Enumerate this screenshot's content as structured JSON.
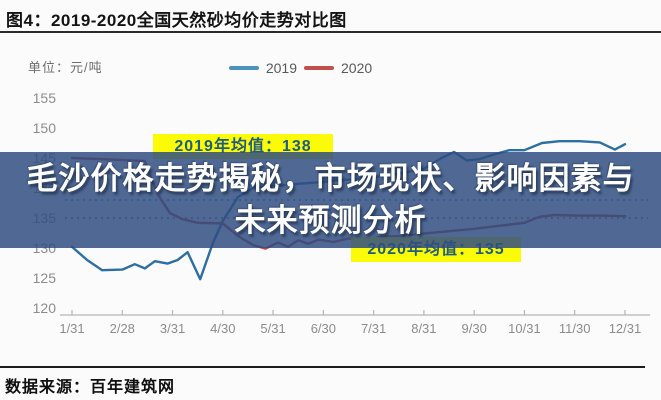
{
  "chart": {
    "title": "图4：2019-2020全国天然砂均价走势对比图",
    "unit_label": "单位：元/吨",
    "legend": {
      "s2019": "2019",
      "s2020": "2020"
    }
  },
  "banner": {
    "line1": "毛沙价格走势揭秘，市场现状、影响因素与",
    "line2": "未来预测分析"
  },
  "footer": {
    "source": "数据来源：百年建筑网"
  },
  "colors": {
    "line_2019": "#2d6fa3",
    "line_2020": "#b5453e",
    "legend_2019": "#4b93bd",
    "legend_2020": "#c0504d",
    "avg_dash_2019": "#4f7fb0",
    "avg_dash_2020": "#a86868",
    "annotation_bg": "#fbfb08",
    "annotation_text": "#1f5c85",
    "banner_bg": "rgba(48,78,129,0.85)",
    "axis": "#b5b5b5",
    "tick_text": "#8c8c8c"
  },
  "chart_data": {
    "type": "line",
    "title": "图4：2019-2020全国天然砂均价走势对比图",
    "ylabel": "元/吨",
    "ylim": [
      120,
      155
    ],
    "y_ticks": [
      155,
      150,
      145,
      140,
      135,
      130,
      125,
      120
    ],
    "x_ticks": [
      "1/31",
      "2/28",
      "3/31",
      "4/30",
      "5/31",
      "6/30",
      "7/31",
      "8/31",
      "9/30",
      "10/31",
      "11/30",
      "12/31"
    ],
    "grid": false,
    "legend_position": "top-center",
    "annotations": [
      {
        "text": "2019年均值：138",
        "value": 138
      },
      {
        "text": "2020年均值：135",
        "value": 135
      }
    ],
    "series": [
      {
        "name": "2019",
        "average": 138,
        "points": [
          [
            0,
            130.2
          ],
          [
            0.3,
            128.0
          ],
          [
            0.6,
            126.3
          ],
          [
            1,
            126.4
          ],
          [
            1.25,
            127.3
          ],
          [
            1.45,
            126.6
          ],
          [
            1.65,
            127.8
          ],
          [
            1.9,
            127.4
          ],
          [
            2.1,
            128.0
          ],
          [
            2.3,
            129.3
          ],
          [
            2.55,
            124.8
          ],
          [
            2.8,
            130.8
          ],
          [
            3,
            134.5
          ],
          [
            3.3,
            138.5
          ],
          [
            3.6,
            140.0
          ],
          [
            4,
            140.3
          ],
          [
            4.5,
            140.7
          ],
          [
            5,
            141.0
          ],
          [
            5.5,
            141.4
          ],
          [
            6,
            141.8
          ],
          [
            6.5,
            142.4
          ],
          [
            7,
            143.2
          ],
          [
            7.35,
            145.0
          ],
          [
            7.6,
            146.0
          ],
          [
            7.85,
            144.6
          ],
          [
            8.1,
            144.8
          ],
          [
            8.4,
            145.6
          ],
          [
            8.7,
            146.3
          ],
          [
            9,
            146.3
          ],
          [
            9.35,
            147.5
          ],
          [
            9.7,
            147.8
          ],
          [
            10.1,
            147.8
          ],
          [
            10.5,
            147.6
          ],
          [
            10.8,
            146.4
          ],
          [
            11,
            147.3
          ]
        ]
      },
      {
        "name": "2020",
        "average": 135,
        "points": [
          [
            0,
            145.0
          ],
          [
            0.6,
            144.8
          ],
          [
            1.2,
            144.6
          ],
          [
            1.45,
            144.5
          ],
          [
            1.7,
            139.0
          ],
          [
            1.95,
            135.8
          ],
          [
            2.2,
            134.8
          ],
          [
            2.5,
            134.2
          ],
          [
            3,
            134.1
          ],
          [
            3.3,
            132.0
          ],
          [
            3.6,
            130.5
          ],
          [
            3.85,
            129.9
          ],
          [
            4.1,
            130.9
          ],
          [
            4.3,
            130.2
          ],
          [
            4.5,
            131.3
          ],
          [
            4.7,
            130.7
          ],
          [
            4.9,
            131.4
          ],
          [
            5.2,
            131.0
          ],
          [
            5.5,
            131.6
          ],
          [
            5.8,
            131.2
          ],
          [
            6.1,
            131.8
          ],
          [
            6.5,
            132.0
          ],
          [
            7,
            132.4
          ],
          [
            7.5,
            132.8
          ],
          [
            8,
            133.2
          ],
          [
            8.5,
            133.7
          ],
          [
            9,
            134.2
          ],
          [
            9.3,
            135.2
          ],
          [
            9.6,
            135.5
          ],
          [
            10,
            135.4
          ],
          [
            10.5,
            135.4
          ],
          [
            11,
            135.3
          ]
        ]
      }
    ]
  }
}
